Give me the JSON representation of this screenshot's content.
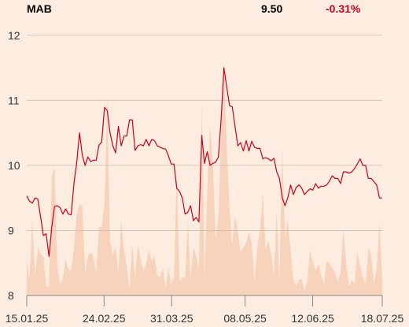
{
  "header": {
    "symbol": "MAB",
    "price": "9.50",
    "change": "-0.31%"
  },
  "colors": {
    "background": "#fcede0",
    "line": "#c8001e",
    "volume": "#f8d3bb",
    "grid": "#c9bfb3",
    "axis": "#8a8a8a",
    "negative": "#c8001e"
  },
  "chart_data": {
    "type": "line",
    "title": "",
    "xlabel": "",
    "ylabel": "",
    "ylim": [
      8,
      12.3
    ],
    "y_ticks": [
      "12",
      "11",
      "10",
      "9",
      "8"
    ],
    "x_ticks": [
      "15.01.25",
      "24.02.25",
      "31.03.25",
      "08.05.25",
      "12.06.25",
      "18.07.25"
    ],
    "x_range": [
      "2025-01-15",
      "2025-07-18"
    ],
    "grid": true,
    "values": [
      9.53,
      9.45,
      9.42,
      9.5,
      9.48,
      9.2,
      8.92,
      8.95,
      8.6,
      9.05,
      9.37,
      9.38,
      9.35,
      9.25,
      9.33,
      9.25,
      9.24,
      9.72,
      10.05,
      10.5,
      10.16,
      10,
      10.13,
      10.06,
      10.08,
      10.08,
      10.31,
      10.36,
      10.89,
      10.84,
      10.5,
      10.3,
      10.19,
      10.6,
      10.3,
      10.45,
      10.45,
      10.7,
      10.7,
      10.23,
      10.3,
      10.32,
      10.3,
      10.4,
      10.3,
      10.4,
      10.38,
      10.3,
      10.28,
      10.26,
      10.25,
      10.15,
      10.02,
      10.02,
      9.65,
      9.6,
      9.5,
      9.25,
      9.28,
      9.38,
      9.15,
      9.2,
      9.13,
      10.46,
      10.03,
      10.21,
      10,
      10.03,
      10.05,
      10.13,
      10.72,
      11.5,
      11.2,
      10.92,
      10.9,
      10.6,
      10.3,
      10.35,
      10.22,
      10.38,
      10.22,
      10.37,
      10.28,
      10.26,
      10.26,
      10.1,
      10.12,
      10.1,
      10.07,
      10.11,
      9.9,
      9.8,
      9.5,
      9.38,
      9.5,
      9.7,
      9.55,
      9.66,
      9.7,
      9.65,
      9.55,
      9.6,
      9.64,
      9.62,
      9.72,
      9.65,
      9.68,
      9.68,
      9.7,
      9.76,
      9.84,
      9.8,
      9.8,
      9.72,
      9.9,
      9.9,
      9.88,
      9.9,
      9.95,
      10.02,
      10.1,
      10,
      10,
      9.8,
      9.8,
      9.75,
      9.7,
      9.5,
      9.5
    ],
    "volume": [
      0.16,
      0.07,
      0.34,
      0.09,
      0.21,
      0.18,
      0.17,
      0.04,
      0.04,
      0.52,
      0.56,
      0.13,
      0.05,
      0.07,
      0.16,
      0.11,
      0.11,
      0.21,
      0.36,
      0.4,
      0.39,
      0.1,
      0.17,
      0.19,
      0.17,
      0.1,
      0.3,
      0.3,
      0.4,
      0.86,
      0.24,
      0.18,
      0.21,
      0.1,
      0.33,
      0.2,
      0.13,
      0.03,
      0.23,
      0.08,
      0.22,
      0.16,
      0.11,
      0.14,
      0.2,
      0.15,
      0.17,
      0.09,
      0.08,
      0.12,
      0.03,
      0.12,
      0.05,
      0.08,
      0.55,
      0.06,
      0.08,
      0.08,
      0.32,
      0.08,
      0.21,
      0.18,
      0.12,
      0.84,
      0.08,
      0.46,
      0.74,
      0.58,
      0.25,
      0.34,
      0.72,
      1.0,
      0.65,
      0.38,
      0.22,
      0.35,
      0.28,
      0.19,
      0.21,
      0.23,
      0.28,
      0.23,
      0.06,
      0.21,
      0.29,
      0.45,
      0.2,
      0.24,
      0.18,
      0.09,
      0.37,
      0.07,
      0.64,
      0.26,
      0.33,
      0.2,
      0.07,
      0.04,
      0.07,
      0.07,
      0.02,
      0.06,
      0.2,
      0.15,
      0.11,
      0.14,
      0.09,
      0.05,
      0.15,
      0.14,
      0.12,
      0.1,
      0.06,
      0.1,
      0.29,
      0.14,
      0.04,
      0.07,
      0.05,
      0.19,
      0.13,
      0.08,
      0.05,
      0.21,
      0.18,
      0.05,
      0.12,
      0.32,
      0.07
    ]
  }
}
